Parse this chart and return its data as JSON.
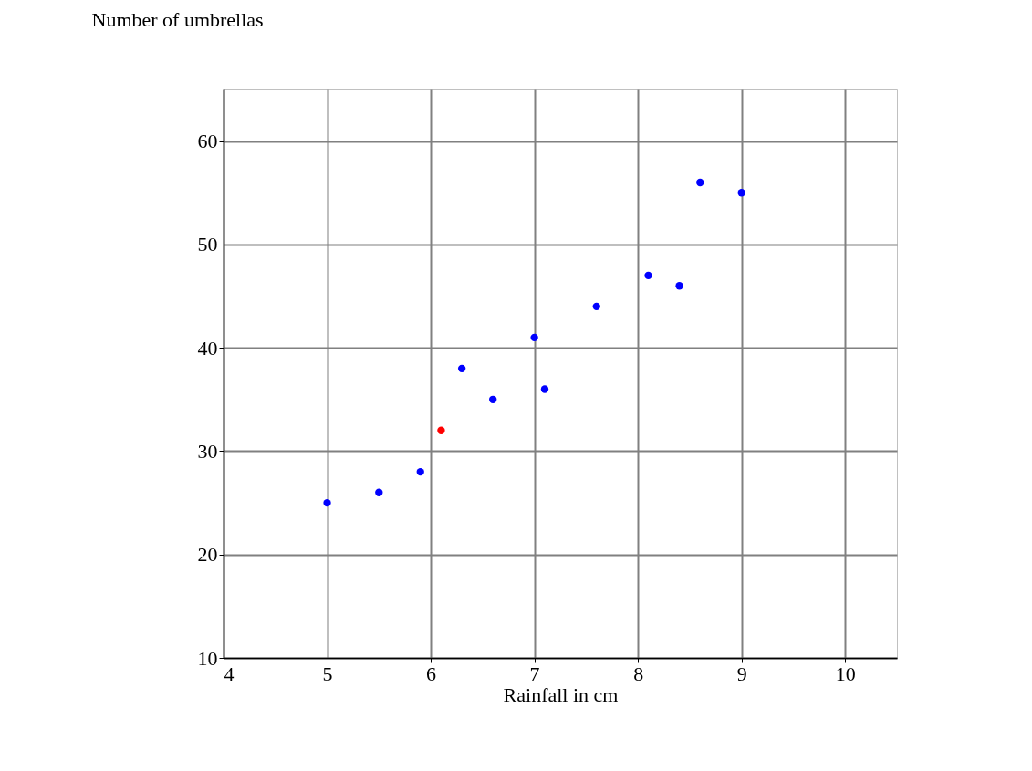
{
  "chart_data": {
    "type": "scatter",
    "xlabel": "Rainfall in cm",
    "ylabel": "Number of umbrellas",
    "series": [
      {
        "color": "#0000ff",
        "x": [
          5,
          5.5,
          5.9,
          6.3,
          6.6,
          7.0,
          7.1,
          7.6,
          8.1,
          8.4,
          8.6,
          9.0
        ],
        "values": [
          25,
          26,
          28,
          38,
          35,
          41,
          36,
          44,
          47,
          46,
          56,
          55
        ]
      },
      {
        "color": "#ff0000",
        "x": [
          6.1
        ],
        "values": [
          32
        ]
      }
    ],
    "xlim": [
      4,
      10.5
    ],
    "xticks": [
      4,
      5,
      6,
      7,
      8,
      9,
      10
    ],
    "ylim": [
      10,
      65
    ],
    "yticks": [
      10,
      20,
      30,
      40,
      50,
      60
    ],
    "grid": true,
    "legend": false
  }
}
